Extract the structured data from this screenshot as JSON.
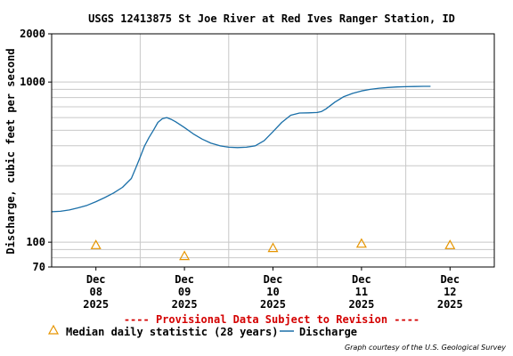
{
  "chart_data": {
    "type": "line",
    "title": "USGS 12413875 St Joe River at Red Ives Ranger Station, ID",
    "ylabel": "Discharge, cubic feet per second",
    "y_scale": "log",
    "ylim": [
      70,
      2000
    ],
    "y_ticks": [
      {
        "value": 70,
        "label": "70"
      },
      {
        "value": 100,
        "label": "100"
      },
      {
        "value": 1000,
        "label": "1000"
      },
      {
        "value": 2000,
        "label": "2000"
      }
    ],
    "x_range_days": [
      0,
      5
    ],
    "x_ticks": [
      {
        "day": 1,
        "month": "Dec",
        "date": "08",
        "year": "2025"
      },
      {
        "day": 2,
        "month": "Dec",
        "date": "09",
        "year": "2025"
      },
      {
        "day": 3,
        "month": "Dec",
        "date": "10",
        "year": "2025"
      },
      {
        "day": 4,
        "month": "Dec",
        "date": "11",
        "year": "2025"
      },
      {
        "day": 5,
        "month": "Dec",
        "date": "12",
        "year": "2025"
      }
    ],
    "series": [
      {
        "name": "Discharge",
        "color": "#1a6fa8",
        "points": [
          [
            0.0,
            155
          ],
          [
            0.1,
            156
          ],
          [
            0.2,
            159
          ],
          [
            0.3,
            164
          ],
          [
            0.4,
            170
          ],
          [
            0.5,
            179
          ],
          [
            0.6,
            190
          ],
          [
            0.7,
            203
          ],
          [
            0.8,
            220
          ],
          [
            0.9,
            250
          ],
          [
            0.95,
            290
          ],
          [
            1.0,
            340
          ],
          [
            1.05,
            400
          ],
          [
            1.1,
            450
          ],
          [
            1.15,
            500
          ],
          [
            1.2,
            560
          ],
          [
            1.25,
            590
          ],
          [
            1.3,
            600
          ],
          [
            1.35,
            585
          ],
          [
            1.4,
            565
          ],
          [
            1.5,
            520
          ],
          [
            1.6,
            475
          ],
          [
            1.7,
            440
          ],
          [
            1.8,
            415
          ],
          [
            1.9,
            400
          ],
          [
            2.0,
            392
          ],
          [
            2.1,
            390
          ],
          [
            2.2,
            392
          ],
          [
            2.3,
            400
          ],
          [
            2.4,
            430
          ],
          [
            2.5,
            490
          ],
          [
            2.6,
            560
          ],
          [
            2.7,
            620
          ],
          [
            2.8,
            640
          ],
          [
            2.9,
            642
          ],
          [
            3.0,
            645
          ],
          [
            3.05,
            655
          ],
          [
            3.1,
            680
          ],
          [
            3.2,
            750
          ],
          [
            3.3,
            810
          ],
          [
            3.4,
            850
          ],
          [
            3.5,
            880
          ],
          [
            3.6,
            900
          ],
          [
            3.7,
            915
          ],
          [
            3.8,
            925
          ],
          [
            3.9,
            932
          ],
          [
            4.0,
            935
          ],
          [
            4.1,
            938
          ],
          [
            4.2,
            940
          ],
          [
            4.28,
            940
          ]
        ]
      }
    ],
    "median_points": [
      {
        "day": 0.5,
        "value": 96
      },
      {
        "day": 1.5,
        "value": 82
      },
      {
        "day": 2.5,
        "value": 92
      },
      {
        "day": 3.5,
        "value": 98
      },
      {
        "day": 4.5,
        "value": 96
      }
    ],
    "median_color": "#e69500",
    "grid": true,
    "legend": [
      {
        "symbol": "triangle",
        "label": "Median daily statistic (28 years)"
      },
      {
        "symbol": "line",
        "label": "Discharge"
      }
    ],
    "notice": "---- Provisional Data Subject to Revision ----",
    "credit": "Graph courtesy of the U.S. Geological Survey"
  }
}
